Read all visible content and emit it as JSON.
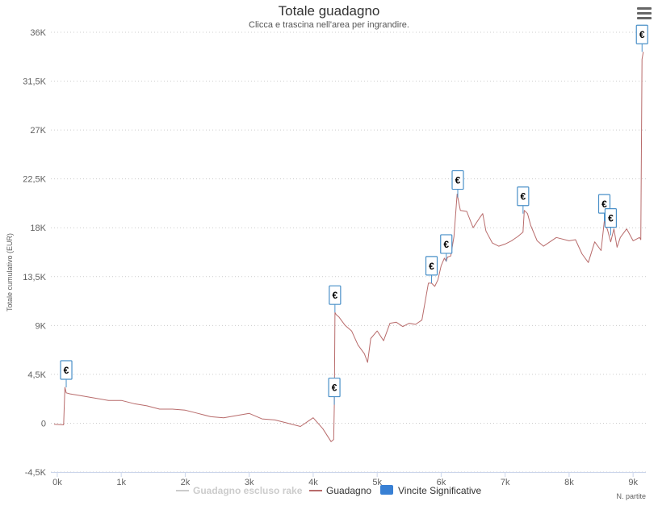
{
  "toolbar": {
    "menu_icon": "hamburger-menu-icon"
  },
  "chart_data": {
    "type": "line",
    "title": "Totale guadagno",
    "subtitle": "Clicca e trascina nell'area per ingrandire.",
    "xlabel": "N. partite",
    "ylabel": "Totale cumulativo (EUR)",
    "xlim": [
      -100,
      9200
    ],
    "ylim": [
      -4500,
      36000
    ],
    "x_ticks": [
      0,
      1000,
      2000,
      3000,
      4000,
      5000,
      6000,
      7000,
      8000,
      9000
    ],
    "x_tick_labels": [
      "0k",
      "1k",
      "2k",
      "3k",
      "4k",
      "5k",
      "6k",
      "7k",
      "8k",
      "9k"
    ],
    "y_ticks": [
      -4500,
      0,
      4500,
      9000,
      13500,
      18000,
      22500,
      27000,
      31500,
      36000
    ],
    "y_tick_labels": [
      "-4,5K",
      "0",
      "4,5K",
      "9K",
      "13,5K",
      "18K",
      "22,5K",
      "27K",
      "31,5K",
      "36K"
    ],
    "grid": true,
    "legend_position": "bottom",
    "colors": {
      "guadagno": "#b86b6b",
      "escluso_rake": "#cccccc",
      "vincite": "#3880d4",
      "grid": "#cccccc",
      "flag_border": "#4a90c8"
    },
    "series": [
      {
        "name": "Guadagno escluso rake",
        "visible": false,
        "x": [],
        "y": []
      },
      {
        "name": "Guadagno",
        "x": [
          -50,
          100,
          120,
          140,
          200,
          400,
          600,
          800,
          1000,
          1200,
          1400,
          1600,
          1800,
          2000,
          2200,
          2400,
          2600,
          2800,
          3000,
          3200,
          3400,
          3600,
          3800,
          4000,
          4150,
          4280,
          4320,
          4330,
          4340,
          4360,
          4400,
          4500,
          4600,
          4700,
          4800,
          4850,
          4900,
          5000,
          5100,
          5200,
          5300,
          5400,
          5500,
          5600,
          5700,
          5800,
          5850,
          5900,
          5950,
          6000,
          6050,
          6080,
          6100,
          6150,
          6200,
          6250,
          6260,
          6300,
          6400,
          6500,
          6600,
          6650,
          6700,
          6800,
          6900,
          7000,
          7100,
          7200,
          7280,
          7300,
          7350,
          7400,
          7500,
          7600,
          7800,
          8000,
          8100,
          8200,
          8300,
          8400,
          8500,
          8550,
          8600,
          8650,
          8700,
          8750,
          8800,
          8900,
          9000,
          9100,
          9120,
          9140,
          9160
        ],
        "y": [
          -100,
          -150,
          3300,
          2800,
          2700,
          2500,
          2300,
          2100,
          2100,
          1800,
          1600,
          1300,
          1300,
          1200,
          900,
          600,
          500,
          700,
          900,
          400,
          300,
          0,
          -300,
          500,
          -500,
          -1700,
          -1500,
          1700,
          10200,
          10000,
          9800,
          9000,
          8500,
          7200,
          6400,
          5600,
          7800,
          8500,
          7600,
          9200,
          9300,
          8900,
          9200,
          9100,
          9500,
          12900,
          12900,
          12600,
          13200,
          14500,
          15200,
          14900,
          15300,
          15400,
          17200,
          21100,
          20800,
          19600,
          19500,
          18000,
          18900,
          19300,
          17700,
          16600,
          16300,
          16500,
          16800,
          17200,
          17600,
          19600,
          19300,
          18200,
          16800,
          16300,
          17100,
          16800,
          16900,
          15600,
          14800,
          16700,
          15900,
          18600,
          17800,
          16700,
          17900,
          16200,
          17100,
          17900,
          16800,
          17100,
          16900,
          33500,
          34200
        ]
      },
      {
        "name": "Vincite Significative",
        "marker_text": "€",
        "x": [
          140,
          4340,
          4330,
          5850,
          6080,
          6260,
          7280,
          8550,
          8650,
          9140
        ],
        "y": [
          3300,
          10200,
          1700,
          12900,
          14900,
          20800,
          19300,
          18600,
          17300,
          34200
        ]
      }
    ]
  }
}
